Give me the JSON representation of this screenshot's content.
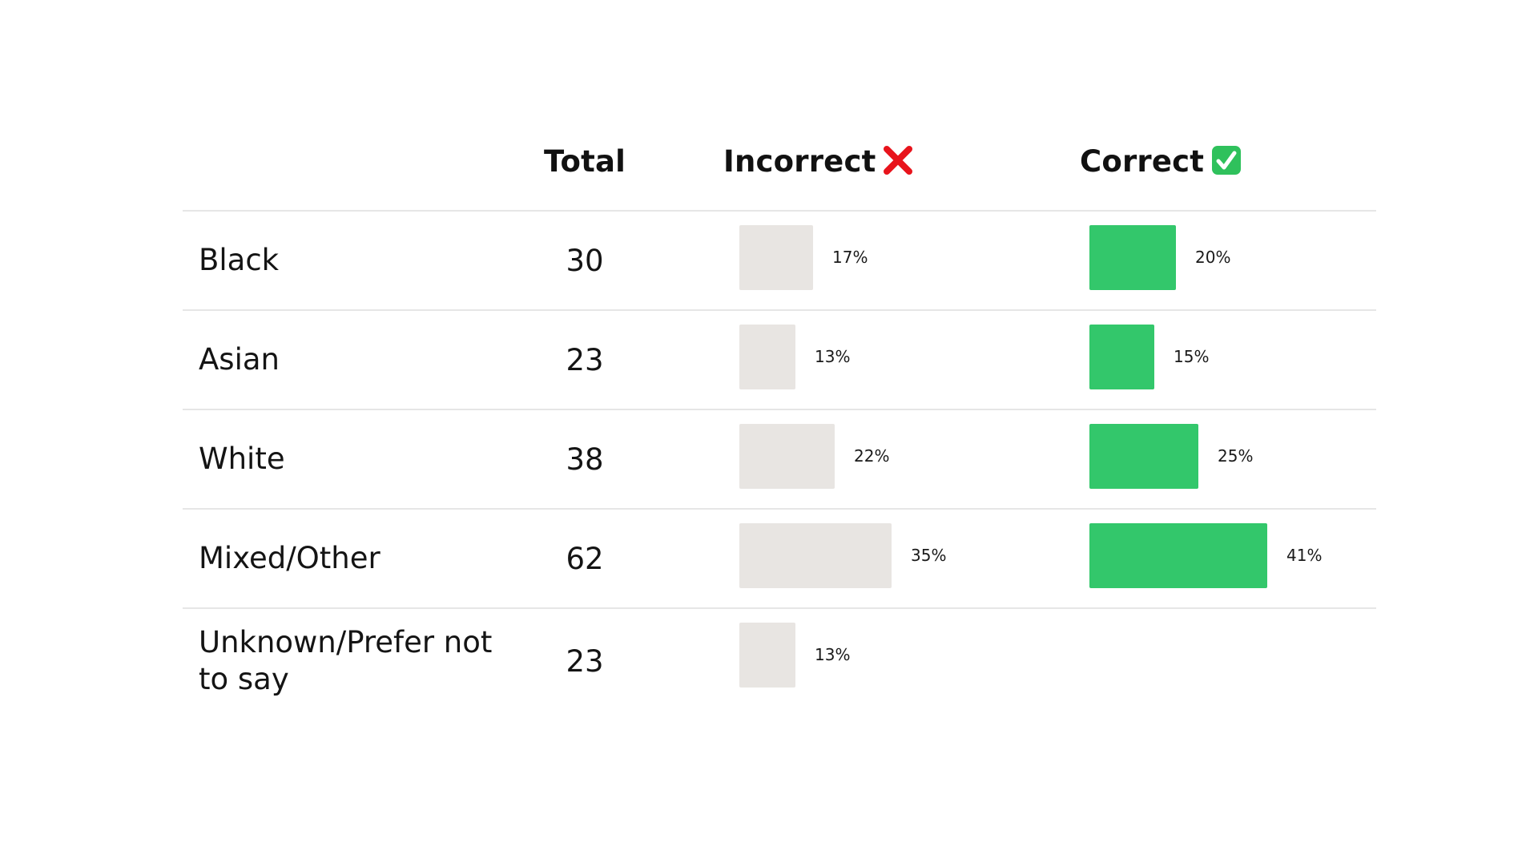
{
  "colors": {
    "incorrect_bar": "#e8e5e2",
    "correct_bar": "#33c76b",
    "cross_icon": "#e8141c",
    "check_icon_bg": "#2fc15c"
  },
  "headers": {
    "total": "Total",
    "incorrect": "Incorrect",
    "incorrect_icon": "red-cross-mark-icon",
    "correct": "Correct",
    "correct_icon": "green-check-mark-box-icon"
  },
  "chart_data": {
    "type": "bar",
    "categories": [
      "Black",
      "Asian",
      "White",
      "Mixed/Other",
      "Unknown/Prefer not to say"
    ],
    "totals": [
      30,
      23,
      38,
      62,
      23
    ],
    "series": [
      {
        "name": "Incorrect",
        "values": [
          17,
          13,
          22,
          35,
          13
        ],
        "labels": [
          "17%",
          "13%",
          "22%",
          "35%",
          "13%"
        ]
      },
      {
        "name": "Correct",
        "values": [
          20,
          15,
          25,
          41,
          null
        ],
        "labels": [
          "20%",
          "15%",
          "25%",
          "41%",
          null
        ]
      }
    ],
    "unit": "%"
  }
}
